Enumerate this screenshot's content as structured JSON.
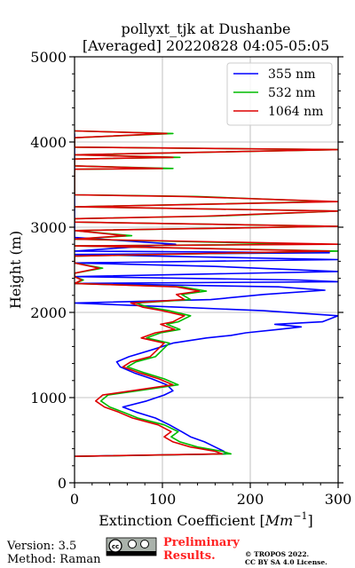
{
  "chart_data": {
    "type": "line",
    "title_line1": "pollyxt_tjk at Dushanbe",
    "title_line2": "[Averaged] 20220828 04:05-05:05",
    "xlabel": "Extinction Coefficient [",
    "xlabel_unit": "Mm",
    "xlabel_exp": "−1",
    "xlabel_close": "]",
    "ylabel": "Height (m)",
    "xlim": [
      0,
      300
    ],
    "ylim": [
      0,
      5000
    ],
    "xticks": [
      0,
      100,
      200,
      300
    ],
    "yticks": [
      0,
      1000,
      2000,
      3000,
      4000,
      5000
    ],
    "grid": true,
    "legend_position": "top-right",
    "series": [
      {
        "name": "355 nm",
        "color": "#0000ff",
        "points": [
          [
            0,
            310
          ],
          [
            172,
            340
          ],
          [
            170,
            370
          ],
          [
            160,
            420
          ],
          [
            148,
            480
          ],
          [
            132,
            540
          ],
          [
            122,
            600
          ],
          [
            108,
            680
          ],
          [
            92,
            760
          ],
          [
            70,
            830
          ],
          [
            55,
            890
          ],
          [
            82,
            960
          ],
          [
            102,
            1030
          ],
          [
            112,
            1080
          ],
          [
            105,
            1150
          ],
          [
            88,
            1220
          ],
          [
            68,
            1290
          ],
          [
            52,
            1360
          ],
          [
            48,
            1420
          ],
          [
            62,
            1480
          ],
          [
            88,
            1560
          ],
          [
            112,
            1640
          ],
          [
            150,
            1700
          ],
          [
            178,
            1730
          ],
          [
            195,
            1760
          ],
          [
            232,
            1800
          ],
          [
            258,
            1830
          ],
          [
            228,
            1860
          ],
          [
            282,
            1890
          ],
          [
            300,
            1960
          ],
          [
            215,
            2020
          ],
          [
            120,
            2060
          ],
          [
            0,
            2110
          ],
          [
            155,
            2150
          ],
          [
            215,
            2210
          ],
          [
            285,
            2260
          ],
          [
            232,
            2300
          ],
          [
            0,
            2340
          ],
          [
            300,
            2360
          ],
          [
            255,
            2380
          ],
          [
            0,
            2420
          ],
          [
            300,
            2480
          ],
          [
            160,
            2540
          ],
          [
            0,
            2580
          ],
          [
            300,
            2620
          ],
          [
            0,
            2680
          ],
          [
            290,
            2700
          ],
          [
            0,
            2720
          ],
          [
            115,
            2800
          ],
          [
            0,
            2880
          ],
          [
            0,
            3100
          ],
          [
            0,
            3600
          ],
          [
            0,
            4100
          ]
        ]
      },
      {
        "name": "532 nm",
        "color": "#00bb00",
        "points": [
          [
            0,
            310
          ],
          [
            178,
            340
          ],
          [
            168,
            370
          ],
          [
            140,
            420
          ],
          [
            120,
            480
          ],
          [
            110,
            540
          ],
          [
            118,
            600
          ],
          [
            102,
            680
          ],
          [
            72,
            760
          ],
          [
            55,
            830
          ],
          [
            40,
            890
          ],
          [
            30,
            960
          ],
          [
            38,
            1030
          ],
          [
            72,
            1080
          ],
          [
            118,
            1150
          ],
          [
            102,
            1220
          ],
          [
            80,
            1290
          ],
          [
            60,
            1360
          ],
          [
            70,
            1420
          ],
          [
            92,
            1480
          ],
          [
            100,
            1560
          ],
          [
            108,
            1640
          ],
          [
            82,
            1700
          ],
          [
            98,
            1760
          ],
          [
            120,
            1800
          ],
          [
            105,
            1860
          ],
          [
            118,
            1890
          ],
          [
            132,
            1960
          ],
          [
            108,
            2020
          ],
          [
            84,
            2060
          ],
          [
            70,
            2110
          ],
          [
            132,
            2150
          ],
          [
            122,
            2210
          ],
          [
            150,
            2250
          ],
          [
            122,
            2300
          ],
          [
            0,
            2340
          ],
          [
            10,
            2380
          ],
          [
            0,
            2420
          ],
          [
            0,
            2460
          ],
          [
            32,
            2520
          ],
          [
            0,
            2580
          ],
          [
            0,
            2660
          ],
          [
            300,
            2720
          ],
          [
            0,
            2780
          ],
          [
            260,
            2800
          ],
          [
            0,
            2860
          ],
          [
            65,
            2900
          ],
          [
            0,
            2960
          ],
          [
            300,
            3010
          ],
          [
            0,
            3060
          ],
          [
            0,
            3100
          ],
          [
            160,
            3130
          ],
          [
            300,
            3190
          ],
          [
            0,
            3240
          ],
          [
            290,
            3300
          ],
          [
            140,
            3360
          ],
          [
            0,
            3380
          ],
          [
            0,
            3680
          ],
          [
            112,
            3690
          ],
          [
            0,
            3720
          ],
          [
            0,
            3800
          ],
          [
            120,
            3820
          ],
          [
            0,
            3850
          ],
          [
            300,
            3910
          ],
          [
            0,
            3940
          ],
          [
            0,
            4050
          ],
          [
            112,
            4100
          ],
          [
            0,
            4130
          ]
        ]
      },
      {
        "name": "1064 nm",
        "color": "#dd0000",
        "points": [
          [
            0,
            310
          ],
          [
            168,
            340
          ],
          [
            160,
            370
          ],
          [
            132,
            420
          ],
          [
            112,
            480
          ],
          [
            102,
            540
          ],
          [
            110,
            600
          ],
          [
            95,
            680
          ],
          [
            66,
            760
          ],
          [
            50,
            830
          ],
          [
            34,
            890
          ],
          [
            24,
            960
          ],
          [
            32,
            1030
          ],
          [
            65,
            1080
          ],
          [
            112,
            1150
          ],
          [
            96,
            1220
          ],
          [
            74,
            1290
          ],
          [
            55,
            1360
          ],
          [
            64,
            1420
          ],
          [
            86,
            1480
          ],
          [
            94,
            1560
          ],
          [
            102,
            1640
          ],
          [
            76,
            1700
          ],
          [
            92,
            1760
          ],
          [
            114,
            1800
          ],
          [
            98,
            1860
          ],
          [
            112,
            1890
          ],
          [
            125,
            1960
          ],
          [
            100,
            2020
          ],
          [
            78,
            2060
          ],
          [
            64,
            2110
          ],
          [
            125,
            2150
          ],
          [
            116,
            2210
          ],
          [
            142,
            2250
          ],
          [
            116,
            2300
          ],
          [
            0,
            2340
          ],
          [
            8,
            2380
          ],
          [
            0,
            2420
          ],
          [
            0,
            2460
          ],
          [
            28,
            2520
          ],
          [
            0,
            2580
          ],
          [
            0,
            2660
          ],
          [
            290,
            2720
          ],
          [
            0,
            2780
          ],
          [
            300,
            2800
          ],
          [
            0,
            2860
          ],
          [
            58,
            2900
          ],
          [
            0,
            2960
          ],
          [
            300,
            3010
          ],
          [
            0,
            3060
          ],
          [
            0,
            3100
          ],
          [
            150,
            3130
          ],
          [
            300,
            3190
          ],
          [
            0,
            3240
          ],
          [
            300,
            3300
          ],
          [
            128,
            3360
          ],
          [
            0,
            3380
          ],
          [
            0,
            3680
          ],
          [
            100,
            3690
          ],
          [
            0,
            3720
          ],
          [
            0,
            3800
          ],
          [
            112,
            3820
          ],
          [
            0,
            3850
          ],
          [
            300,
            3910
          ],
          [
            0,
            3940
          ],
          [
            0,
            4050
          ],
          [
            105,
            4100
          ],
          [
            0,
            4130
          ]
        ]
      }
    ]
  },
  "footer": {
    "version": "Version: 3.5",
    "method": "Method: Raman",
    "license_badge": "cc-by-sa-badge",
    "prelim_line1": "Preliminary",
    "prelim_line2": "Results.",
    "prelim_color": "#ff2222",
    "copyright_line1": "© TROPOS 2022.",
    "copyright_line2": "CC BY SA 4.0 License."
  }
}
